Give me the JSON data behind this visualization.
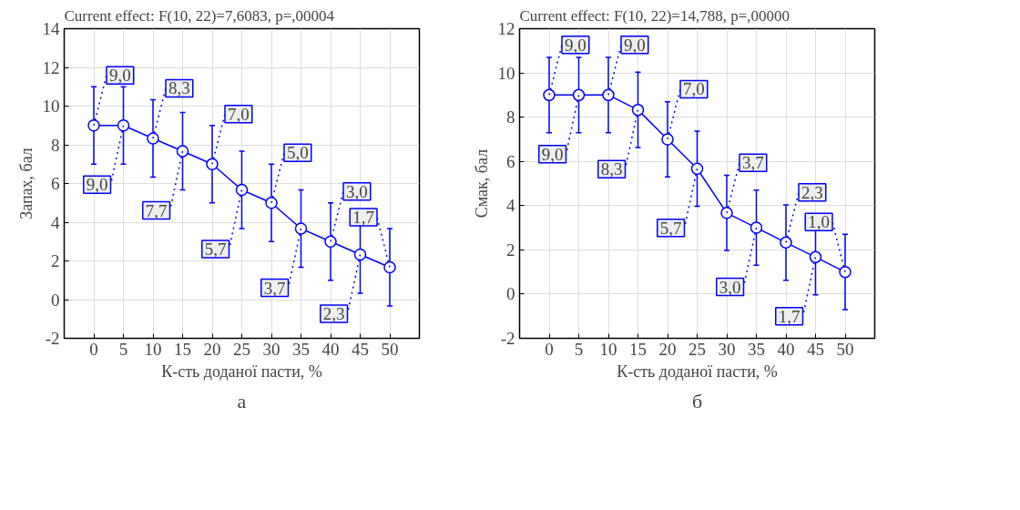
{
  "chart_data": [
    {
      "type": "line",
      "title": "Current effect: F(10, 22)=7,6083, p=,00004",
      "xlabel": "К-сть доданої пасти, %",
      "ylabel": "Запах, бал",
      "x": [
        0,
        5,
        10,
        15,
        20,
        25,
        30,
        35,
        40,
        45,
        50
      ],
      "xlim": [
        -5,
        55
      ],
      "xticks": [
        0,
        5,
        10,
        15,
        20,
        25,
        30,
        35,
        40,
        45,
        50
      ],
      "ylim": [
        -2,
        14
      ],
      "yticks": [
        -2,
        0,
        2,
        4,
        6,
        8,
        10,
        12,
        14
      ],
      "grid": true,
      "marker": "circle",
      "line_style": "solid",
      "series": [
        {
          "color": "#0000ff",
          "values": [
            9,
            9,
            8.33,
            7.67,
            7,
            5.67,
            5,
            3.67,
            3,
            2.33,
            1.67
          ],
          "errors": [
            2,
            2,
            2,
            2,
            2,
            2,
            2,
            2,
            2,
            2,
            2
          ],
          "value_labels": [
            "9,0",
            "9,0",
            "8,3",
            "7,7",
            "7,0",
            "5,7",
            "5,0",
            "3,7",
            "3,0",
            "2,3",
            "1,7"
          ]
        }
      ],
      "annotations": [
        "а"
      ]
    },
    {
      "type": "line",
      "title": "Current effect: F(10, 22)=14,788, p=,00000",
      "xlabel": "К-сть доданої пасти, %",
      "ylabel": "Смак, бал",
      "x": [
        0,
        5,
        10,
        15,
        20,
        25,
        30,
        35,
        40,
        45,
        50
      ],
      "xlim": [
        -5,
        55
      ],
      "xticks": [
        0,
        5,
        10,
        15,
        20,
        25,
        30,
        35,
        40,
        45,
        50
      ],
      "ylim": [
        -2,
        12
      ],
      "yticks": [
        -2,
        0,
        2,
        4,
        6,
        8,
        10,
        12
      ],
      "grid": true,
      "marker": "circle",
      "line_style": "solid",
      "series": [
        {
          "color": "#0000ff",
          "values": [
            9,
            9,
            9,
            8.33,
            7,
            5.67,
            3.67,
            3,
            2.33,
            1.67,
            1
          ],
          "errors": [
            1.7,
            1.7,
            1.7,
            1.7,
            1.7,
            1.7,
            1.7,
            1.7,
            1.7,
            1.7,
            1.7
          ],
          "value_labels": [
            "9,0",
            "9,0",
            "9,0",
            "8,3",
            "7,0",
            "5,7",
            "3,7",
            "3,0",
            "2,3",
            "1,7",
            "1,0"
          ]
        }
      ],
      "annotations": [
        "б"
      ]
    }
  ]
}
